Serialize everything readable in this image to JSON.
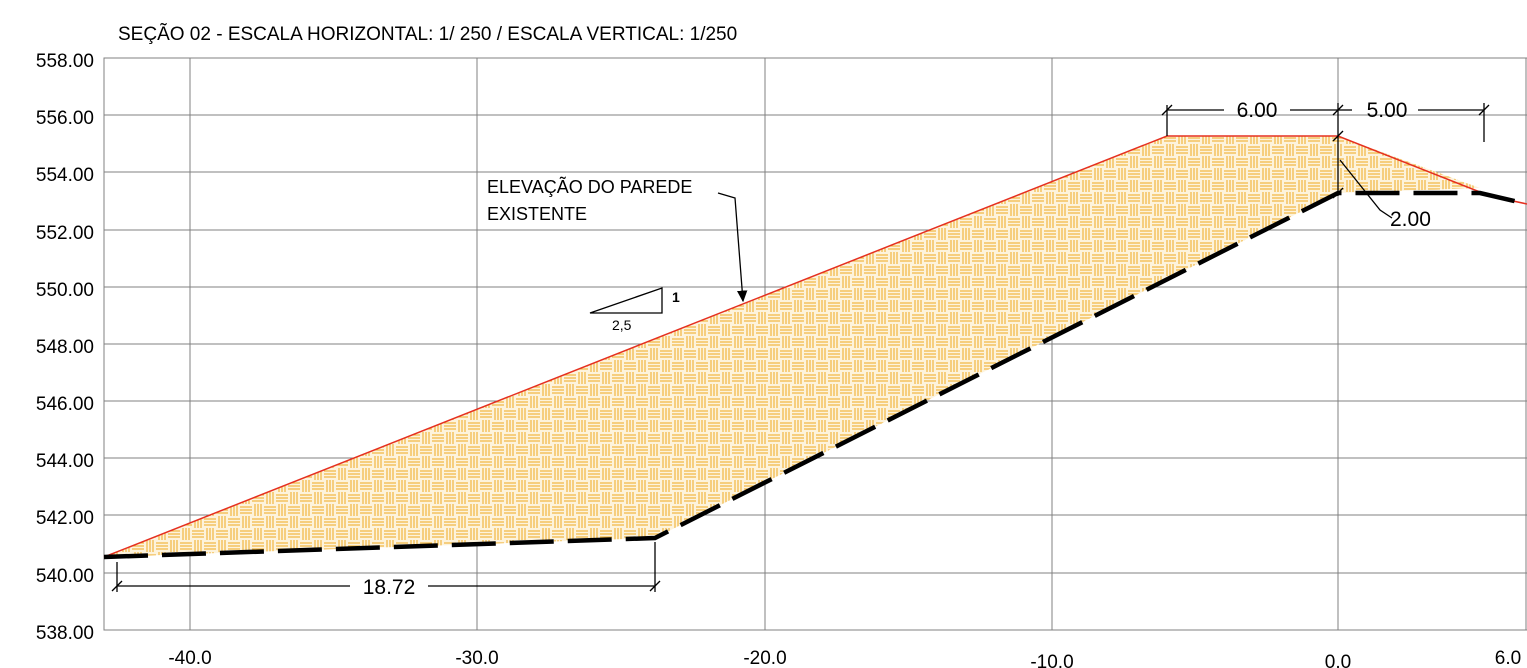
{
  "title": "SEÇÃO 02 - ESCALA HORIZONTAL: 1/ 250 / ESCALA VERTICAL: 1/250",
  "colors": {
    "grid": "#808080",
    "fill": "#fdf3dc",
    "hatch": "#f0b030",
    "embankment_line": "#e53020",
    "terrain_line": "#000000"
  },
  "axes": {
    "y_labels": [
      "558.00",
      "556.00",
      "554.00",
      "552.00",
      "550.00",
      "548.00",
      "546.00",
      "544.00",
      "542.00",
      "540.00",
      "538.00"
    ],
    "x_labels": [
      "-40.0",
      "-30.0",
      "-20.0",
      "-10.0",
      "0.0",
      "6.0"
    ]
  },
  "annotation": {
    "line1": "ELEVAÇÃO DO PAREDE",
    "line2": "EXISTENTE"
  },
  "slope": {
    "vertical": "1",
    "horizontal": "2,5"
  },
  "dimensions": {
    "crest_width": "6.00",
    "right_width": "5.00",
    "height": "2.00",
    "base_length": "18.72"
  },
  "chart_data": {
    "type": "line",
    "title": "SEÇÃO 02 - ESCALA HORIZONTAL: 1/ 250 / ESCALA VERTICAL: 1/250",
    "xlim": [
      -43,
      6
    ],
    "ylim": [
      538,
      558
    ],
    "grid": true,
    "series": [
      {
        "points": [
          [
            -43.2,
            540.4
          ],
          [
            -6,
            555.1
          ],
          [
            0,
            555.1
          ],
          [
            6,
            553
          ]
        ]
      },
      {
        "points": [
          [
            -43.2,
            540.4
          ],
          [
            -23.8,
            541.1
          ],
          [
            0,
            553.1
          ],
          [
            5.5,
            553.1
          ],
          [
            6,
            552.8
          ]
        ]
      }
    ]
  }
}
